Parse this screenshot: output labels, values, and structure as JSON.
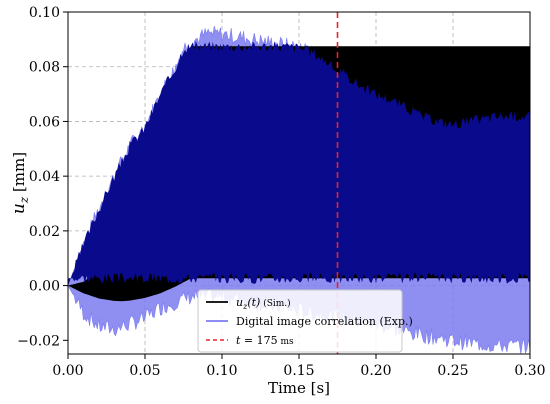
{
  "chart_data": {
    "type": "line",
    "xlabel": "Time [s]",
    "ylabel": "u_z [mm]",
    "ylabel_main": "u",
    "ylabel_sub": "z",
    "ylabel_unit": " [mm]",
    "xlim": [
      0.0,
      0.3
    ],
    "ylim": [
      -0.025,
      0.1
    ],
    "grid": true,
    "x_ticks": [
      "0.00",
      "0.05",
      "0.10",
      "0.15",
      "0.20",
      "0.25",
      "0.30"
    ],
    "x_tick_values": [
      0.0,
      0.05,
      0.1,
      0.15,
      0.2,
      0.25,
      0.3
    ],
    "y_ticks": [
      "−0.02",
      "0.00",
      "0.02",
      "0.04",
      "0.06",
      "0.08",
      "0.10"
    ],
    "y_tick_values": [
      -0.02,
      0.0,
      0.02,
      0.04,
      0.06,
      0.08,
      0.1
    ],
    "legend_position": "bottom-center",
    "series": [
      {
        "name": "u_z(t) (Sim.)",
        "label_main": "u",
        "label_sub": "z",
        "label_arg": "(t)",
        "label_suffix": " (Sim.)",
        "color": "#000000",
        "style": "dense-oscillation",
        "upper_envelope": {
          "x": [
            0.0,
            0.01,
            0.02,
            0.03,
            0.04,
            0.05,
            0.06,
            0.07,
            0.08,
            0.3
          ],
          "y": [
            0.0,
            0.0014,
            0.0055,
            0.0124,
            0.022,
            0.0344,
            0.0495,
            0.0674,
            0.0875,
            0.0875
          ]
        },
        "lower_envelope": {
          "x": [
            0.0,
            0.01,
            0.02,
            0.03,
            0.035,
            0.04,
            0.05,
            0.06,
            0.07,
            0.08,
            0.3
          ],
          "y": [
            0.0,
            -0.0028,
            -0.0047,
            -0.0056,
            -0.0057,
            -0.0055,
            -0.0045,
            -0.0028,
            -0.0003,
            0.0027,
            0.0027
          ]
        }
      },
      {
        "name": "Digital image correlation (Exp.)",
        "color": "#7b7bf0",
        "fill_color": "#0a0a8c",
        "style": "dense-oscillation",
        "upper_envelope": {
          "x": [
            0.0,
            0.01,
            0.02,
            0.03,
            0.04,
            0.05,
            0.06,
            0.07,
            0.075,
            0.08,
            0.09,
            0.1,
            0.11,
            0.12,
            0.13,
            0.14,
            0.15,
            0.16,
            0.17,
            0.175,
            0.18,
            0.19,
            0.2,
            0.21,
            0.22,
            0.23,
            0.24,
            0.25,
            0.26,
            0.27,
            0.28,
            0.29,
            0.3
          ],
          "y": [
            0.0,
            0.015,
            0.028,
            0.04,
            0.051,
            0.058,
            0.07,
            0.08,
            0.087,
            0.089,
            0.092,
            0.092,
            0.091,
            0.09,
            0.089,
            0.088,
            0.087,
            0.085,
            0.081,
            0.078,
            0.077,
            0.073,
            0.07,
            0.068,
            0.065,
            0.062,
            0.06,
            0.059,
            0.06,
            0.061,
            0.062,
            0.062,
            0.062
          ]
        },
        "lower_envelope": {
          "x": [
            0.0,
            0.01,
            0.02,
            0.03,
            0.04,
            0.05,
            0.06,
            0.07,
            0.08,
            0.1,
            0.12,
            0.14,
            0.16,
            0.175,
            0.18,
            0.2,
            0.22,
            0.24,
            0.26,
            0.28,
            0.3
          ],
          "y": [
            0.0,
            -0.01,
            -0.015,
            -0.016,
            -0.014,
            -0.012,
            -0.008,
            -0.006,
            -0.004,
            -0.004,
            -0.006,
            -0.008,
            -0.01,
            -0.011,
            -0.012,
            -0.014,
            -0.017,
            -0.019,
            -0.021,
            -0.022,
            -0.022
          ]
        }
      }
    ],
    "vline": {
      "x": 0.175,
      "label_main": "t",
      "label_eq": " = 175",
      "label_unit": " ms",
      "color": "#e8232a"
    }
  }
}
